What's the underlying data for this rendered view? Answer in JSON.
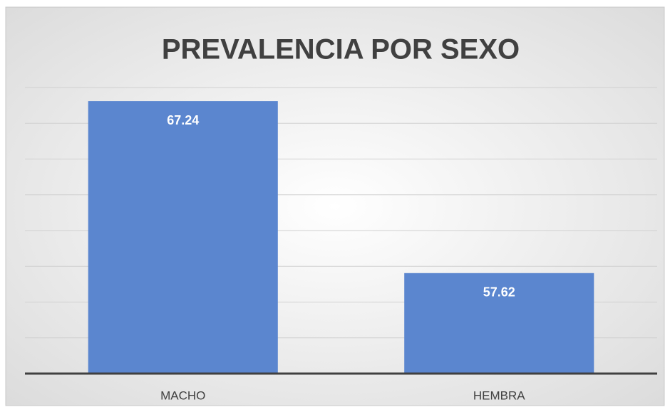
{
  "chart_data": {
    "type": "bar",
    "title": "PREVALENCIA POR SEXO",
    "categories": [
      "MACHO",
      "HEMBRA"
    ],
    "values": [
      67.24,
      57.62
    ],
    "color": "#5b86cf",
    "ylim": [
      52,
      68
    ],
    "yticks": [
      52,
      54,
      56,
      58,
      60,
      62,
      64,
      66,
      68
    ],
    "grid": true
  }
}
